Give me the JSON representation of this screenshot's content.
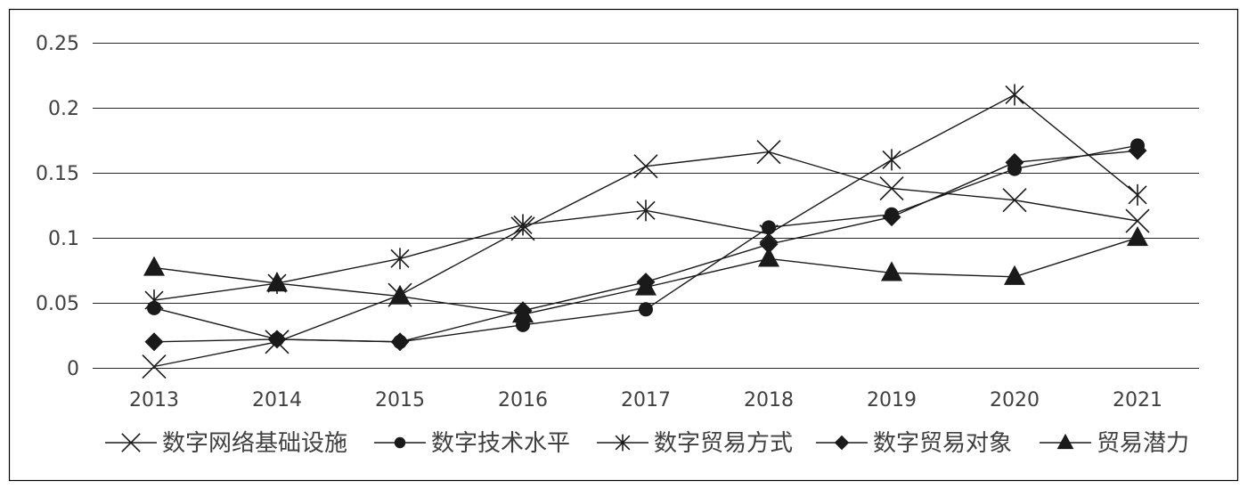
{
  "chart_data": {
    "type": "line",
    "categories": [
      "2013",
      "2014",
      "2015",
      "2016",
      "2017",
      "2018",
      "2019",
      "2020",
      "2021"
    ],
    "ylim": [
      0,
      0.25
    ],
    "yticks": [
      0,
      0.05,
      0.1,
      0.15,
      0.2,
      0.25
    ],
    "ytick_labels": [
      "0",
      "0.05",
      "0.1",
      "0.15",
      "0.2",
      "0.25"
    ],
    "grid": "horizontal",
    "legend_position": "bottom",
    "series": [
      {
        "name": "数字网络基础设施",
        "marker": "x-marker",
        "values": [
          0.001,
          0.02,
          0.056,
          0.107,
          0.155,
          0.166,
          0.138,
          0.129,
          0.113
        ]
      },
      {
        "name": "数字技术水平",
        "marker": "circle-marker",
        "values": [
          0.046,
          0.022,
          0.02,
          0.033,
          0.045,
          0.108,
          0.118,
          0.153,
          0.171
        ]
      },
      {
        "name": "数字贸易方式",
        "marker": "asterisk-marker",
        "values": [
          0.052,
          0.065,
          0.084,
          0.11,
          0.121,
          0.103,
          0.16,
          0.21,
          0.133
        ]
      },
      {
        "name": "数字贸易对象",
        "marker": "diamond-marker",
        "values": [
          0.02,
          0.022,
          0.02,
          0.044,
          0.066,
          0.095,
          0.116,
          0.158,
          0.167
        ]
      },
      {
        "name": "贸易潜力",
        "marker": "triangle-marker",
        "values": [
          0.077,
          0.065,
          0.055,
          0.041,
          0.062,
          0.084,
          0.073,
          0.07,
          0.1
        ]
      }
    ]
  },
  "colors": {
    "series": "#1a1a1a",
    "grid": "#262626",
    "text": "#404040",
    "border": "#000000",
    "background": "#ffffff"
  }
}
